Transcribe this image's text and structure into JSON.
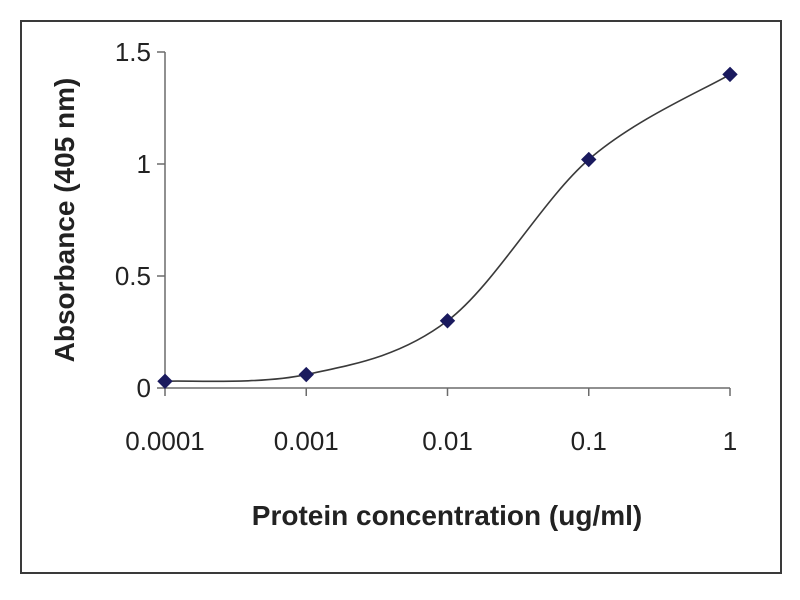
{
  "chart_data": {
    "type": "line",
    "title": "",
    "xlabel": "Protein concentration (ug/ml)",
    "ylabel": "Absorbance (405 nm)",
    "xscale": "log",
    "xlim": [
      0.0001,
      1
    ],
    "ylim": [
      0,
      1.5
    ],
    "x_tick_labels": [
      "0.0001",
      "0.001",
      "0.01",
      "0.1",
      "1"
    ],
    "y_tick_labels": [
      "0",
      "0.5",
      "1",
      "1.5"
    ],
    "grid": false,
    "legend": "none",
    "series": [
      {
        "x": [
          0.0001,
          0.001,
          0.01,
          0.1,
          1
        ],
        "y": [
          0.03,
          0.06,
          0.3,
          1.02,
          1.4
        ],
        "marker": "diamond",
        "color": "#1a1a5e",
        "line": "smoothed"
      }
    ]
  }
}
